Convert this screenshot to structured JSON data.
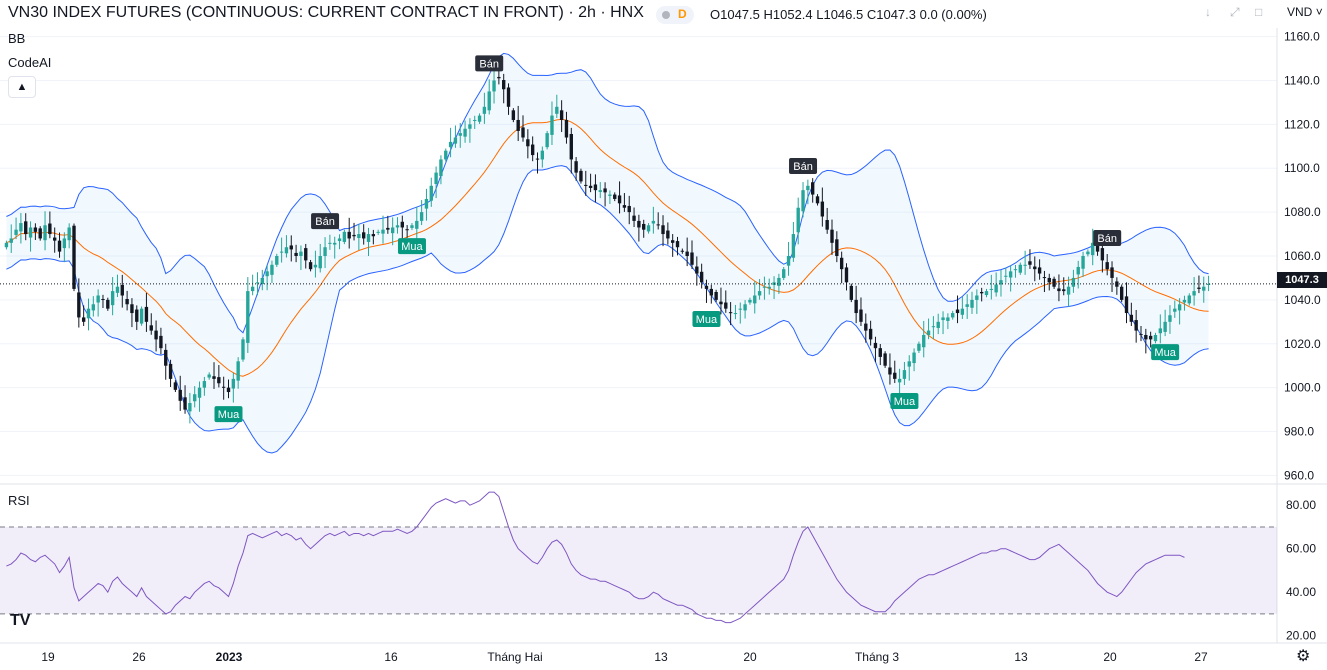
{
  "header": {
    "title": "VN30 INDEX FUTURES (CONTINUOUS: CURRENT CONTRACT IN FRONT) · 2h · HNX",
    "ohlc": "O1047.5  H1052.4  L1046.5  C1047.3  0.0 (0.00%)",
    "badge": "D",
    "currency": "VND"
  },
  "indicators": {
    "bb_label": "BB",
    "codeai_label": "CodeAI",
    "collapse_icon": "chevron-up-icon",
    "rsi_label": "RSI"
  },
  "colors": {
    "up": "#26a69a",
    "down": "#131722",
    "bb_band": "#2962ff",
    "bb_fill": "#2196f3",
    "basis": "#ff6d00",
    "rsi_line": "#7e57c2",
    "rsi_fill": "#7e57c2",
    "sell_label": "#2a2e39",
    "buy_label": "#089981"
  },
  "price_axis": {
    "ticks": [
      "1160.0",
      "1140.0",
      "1120.0",
      "1100.0",
      "1080.0",
      "1060.0",
      "1040.0",
      "1020.0",
      "1000.0",
      "980.0",
      "960.0"
    ],
    "current_price": "1047.3"
  },
  "rsi_axis": {
    "ticks": [
      "80.00",
      "60.00",
      "40.00",
      "20.00"
    ],
    "upper": 70,
    "lower": 30
  },
  "time_axis": {
    "labels": [
      "19",
      "26",
      "2023",
      "16",
      "Tháng Hai",
      "13",
      "20",
      "Tháng 3",
      "13",
      "20",
      "27"
    ]
  },
  "signals": [
    {
      "text": "Mua",
      "bar": 46,
      "kind": "buy"
    },
    {
      "text": "Bán",
      "bar": 66,
      "kind": "sell"
    },
    {
      "text": "Mua",
      "bar": 84,
      "kind": "buy"
    },
    {
      "text": "Bán",
      "bar": 100,
      "kind": "sell"
    },
    {
      "text": "Mua",
      "bar": 145,
      "kind": "buy"
    },
    {
      "text": "Bán",
      "bar": 165,
      "kind": "sell"
    },
    {
      "text": "Mua",
      "bar": 186,
      "kind": "buy"
    },
    {
      "text": "Bán",
      "bar": 228,
      "kind": "sell"
    },
    {
      "text": "Mua",
      "bar": 240,
      "kind": "buy"
    }
  ],
  "chart_data": {
    "type": "candlestick",
    "title": "VN30 INDEX FUTURES (CONTINUOUS: CURRENT CONTRACT IN FRONT) · 2h · HNX",
    "ylim": [
      957,
      1163
    ],
    "rsi_ylim": [
      18,
      87
    ],
    "close": [
      1066,
      1068,
      1072,
      1075,
      1070,
      1073,
      1071,
      1068,
      1074,
      1070,
      1067,
      1062,
      1068,
      1073,
      1045,
      1032,
      1030,
      1036,
      1038,
      1042,
      1040,
      1036,
      1044,
      1046,
      1042,
      1038,
      1034,
      1030,
      1036,
      1030,
      1026,
      1022,
      1018,
      1010,
      1004,
      999,
      994,
      990,
      993,
      997,
      1000,
      1003,
      1006,
      1004,
      1002,
      1000,
      998,
      1004,
      1012,
      1022,
      1044,
      1046,
      1048,
      1050,
      1053,
      1056,
      1060,
      1062,
      1064,
      1063,
      1060,
      1062,
      1058,
      1054,
      1056,
      1060,
      1064,
      1066,
      1066,
      1068,
      1071,
      1068,
      1069,
      1070,
      1068,
      1070,
      1069,
      1071,
      1072,
      1072,
      1073,
      1074,
      1073,
      1072,
      1074,
      1076,
      1080,
      1086,
      1092,
      1098,
      1104,
      1108,
      1112,
      1114,
      1116,
      1118,
      1120,
      1122,
      1124,
      1128,
      1135,
      1140,
      1141,
      1136,
      1128,
      1122,
      1117,
      1114,
      1110,
      1106,
      1104,
      1108,
      1116,
      1124,
      1128,
      1122,
      1114,
      1104,
      1098,
      1094,
      1092,
      1091,
      1090,
      1090,
      1089,
      1088,
      1086,
      1084,
      1082,
      1080,
      1076,
      1073,
      1072,
      1074,
      1076,
      1074,
      1070,
      1068,
      1066,
      1064,
      1062,
      1060,
      1056,
      1052,
      1048,
      1045,
      1042,
      1040,
      1038,
      1036,
      1034,
      1034,
      1036,
      1038,
      1040,
      1042,
      1044,
      1046,
      1046,
      1048,
      1050,
      1054,
      1060,
      1070,
      1082,
      1090,
      1092,
      1088,
      1084,
      1078,
      1072,
      1066,
      1060,
      1054,
      1048,
      1040,
      1034,
      1030,
      1026,
      1022,
      1018,
      1014,
      1010,
      1006,
      1004,
      1004,
      1008,
      1012,
      1016,
      1020,
      1024,
      1026,
      1028,
      1030,
      1032,
      1032,
      1034,
      1034,
      1036,
      1038,
      1040,
      1042,
      1043,
      1044,
      1045,
      1047,
      1049,
      1051,
      1053,
      1054,
      1056,
      1056,
      1056,
      1054,
      1052,
      1050,
      1048,
      1046,
      1044,
      1044,
      1046,
      1050,
      1055,
      1060,
      1062,
      1066,
      1062,
      1058,
      1054,
      1050,
      1046,
      1040,
      1034,
      1030,
      1026,
      1024,
      1022,
      1022,
      1024,
      1027,
      1030,
      1033,
      1036,
      1038,
      1040,
      1042,
      1044,
      1045,
      1046,
      1047.3
    ],
    "rsi": [
      52,
      53,
      55,
      58,
      57,
      55,
      54,
      56,
      57,
      55,
      53,
      49,
      52,
      56,
      42,
      36,
      38,
      40,
      42,
      44,
      43,
      40,
      45,
      47,
      44,
      42,
      40,
      38,
      42,
      38,
      36,
      34,
      32,
      30,
      31,
      34,
      36,
      38,
      37,
      40,
      42,
      44,
      45,
      43,
      42,
      40,
      38,
      44,
      52,
      58,
      66,
      67,
      66,
      65,
      66,
      67,
      68,
      66,
      67,
      66,
      64,
      65,
      62,
      60,
      62,
      64,
      66,
      67,
      66,
      67,
      68,
      66,
      67,
      67,
      66,
      67,
      66,
      67,
      68,
      68,
      68,
      69,
      68,
      67,
      68,
      70,
      73,
      76,
      79,
      81,
      82,
      83,
      82,
      81,
      82,
      82,
      80,
      81,
      82,
      84,
      86,
      86,
      84,
      77,
      70,
      64,
      60,
      58,
      56,
      54,
      53,
      56,
      60,
      63,
      64,
      62,
      58,
      53,
      50,
      48,
      47,
      46,
      46,
      45,
      45,
      44,
      43,
      42,
      41,
      40,
      38,
      37,
      37,
      38,
      40,
      39,
      37,
      36,
      35,
      34,
      34,
      33,
      32,
      30,
      29,
      28,
      28,
      27,
      27,
      26,
      26,
      27,
      28,
      30,
      32,
      34,
      36,
      38,
      40,
      42,
      44,
      46,
      50,
      57,
      63,
      68,
      70,
      66,
      62,
      58,
      54,
      50,
      46,
      43,
      40,
      38,
      36,
      34,
      33,
      32,
      31,
      31,
      31,
      33,
      36,
      38,
      40,
      42,
      44,
      46,
      47,
      48,
      48,
      49,
      50,
      51,
      52,
      53,
      54,
      55,
      56,
      57,
      58,
      58,
      59,
      59,
      60,
      60,
      59,
      58,
      57,
      56,
      55,
      55,
      56,
      58,
      60,
      61,
      62,
      60,
      58,
      56,
      54,
      52,
      50,
      47,
      44,
      42,
      40,
      39,
      38,
      40,
      43,
      46,
      49,
      51,
      53,
      54,
      55,
      56,
      57,
      57,
      57,
      57,
      56
    ],
    "bb_upper": [],
    "bb_lower": [],
    "bb_basis": []
  }
}
